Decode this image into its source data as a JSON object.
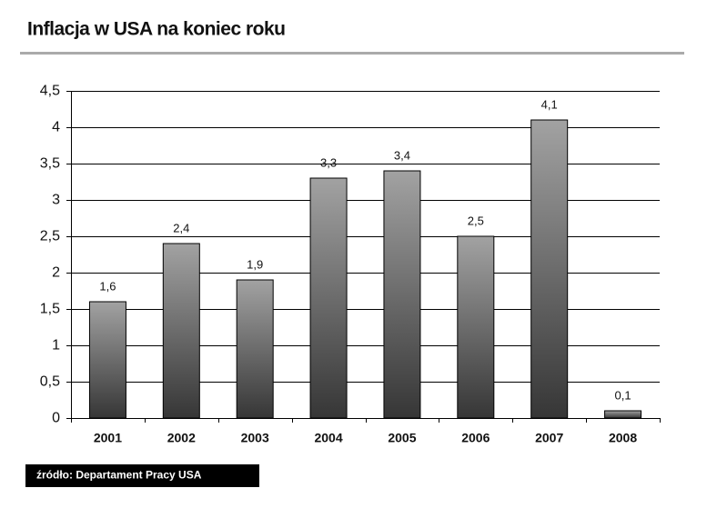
{
  "header": {
    "title": "Inflacja w USA na koniec roku"
  },
  "chart_data": {
    "type": "bar",
    "categories": [
      "2001",
      "2002",
      "2003",
      "2004",
      "2005",
      "2006",
      "2007",
      "2008"
    ],
    "values": [
      1.6,
      2.4,
      1.9,
      3.3,
      3.4,
      2.5,
      4.1,
      0.1
    ],
    "value_labels": [
      "1,6",
      "2,4",
      "1,9",
      "3,3",
      "3,4",
      "2,5",
      "4,1",
      "0,1"
    ],
    "colors": [
      "#a2a2a2",
      "#363636"
    ],
    "ylim": [
      0,
      4.5
    ],
    "yticks": [
      0,
      {
        "value": 0.5,
        "label": "0,5"
      },
      1,
      {
        "value": 1.5,
        "label": "1,5"
      },
      2,
      {
        "value": 2.5,
        "label": "2,5"
      },
      3,
      {
        "value": 3.5,
        "label": "3,5"
      },
      4,
      {
        "value": 4.5,
        "label": "4,5"
      }
    ],
    "grid": true
  },
  "footer": {
    "source": "źródło: Departament Pracy USA"
  }
}
